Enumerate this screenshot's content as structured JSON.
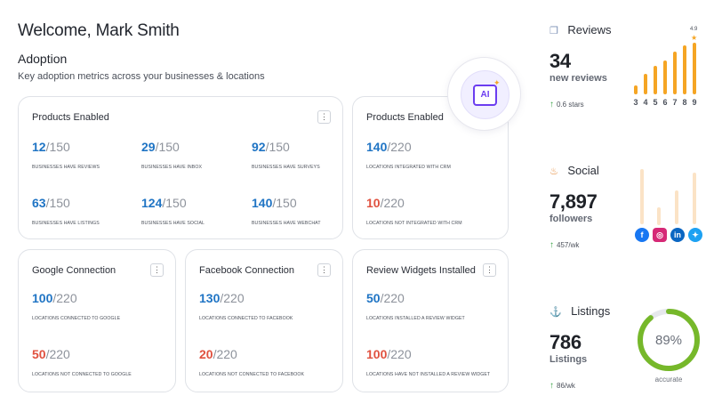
{
  "header": {
    "welcome": "Welcome, Mark Smith",
    "section_title": "Adoption",
    "section_subtitle": "Key adoption metrics across your businesses & locations"
  },
  "ai_badge": {
    "label": "AI",
    "icon": "ai-sparkle-icon"
  },
  "cards": {
    "products_businesses": {
      "title": "Products Enabled",
      "metrics": [
        {
          "num": "12",
          "total": "/150",
          "label": "Businesses have reviews"
        },
        {
          "num": "29",
          "total": "/150",
          "label": "Businesses have inbox"
        },
        {
          "num": "92",
          "total": "/150",
          "label": "Businesses have surveys"
        },
        {
          "num": "63",
          "total": "/150",
          "label": "Businesses have listings"
        },
        {
          "num": "124",
          "total": "/150",
          "label": "Businesses have social"
        },
        {
          "num": "140",
          "total": "/150",
          "label": "Businesses have webchat"
        }
      ]
    },
    "products_locations": {
      "title": "Products Enabled",
      "metrics": [
        {
          "num": "140",
          "total": "/220",
          "label": "Locations integrated with CRM"
        },
        {
          "num": "10",
          "total": "/220",
          "label": "Locations not integrated with CRM"
        }
      ]
    },
    "google": {
      "title": "Google Connection",
      "metrics": [
        {
          "num": "100",
          "total": "/220",
          "label": "Locations connected to Google"
        },
        {
          "num": "50",
          "total": "/220",
          "label": "Locations not connected to Google"
        }
      ]
    },
    "facebook": {
      "title": "Facebook Connection",
      "metrics": [
        {
          "num": "130",
          "total": "/220",
          "label": "Locations connected to Facebook"
        },
        {
          "num": "20",
          "total": "/220",
          "label": "Locations not connected to Facebook"
        }
      ]
    },
    "widgets": {
      "title": "Review Widgets Installed",
      "metrics": [
        {
          "num": "50",
          "total": "/220",
          "label": "Locations installed a review widget"
        },
        {
          "num": "100",
          "total": "/220",
          "label": "Locations have not installed a review widget"
        }
      ]
    },
    "kebab": "⋮"
  },
  "reviews": {
    "title": "Reviews",
    "icon": "reviews-icon",
    "count": "34",
    "count_label": "new reviews",
    "trend": "0.6 stars",
    "rating_top": "4.9",
    "chart": {
      "categories": [
        "3",
        "4",
        "5",
        "6",
        "7",
        "8",
        "9"
      ],
      "values": [
        0.18,
        0.4,
        0.55,
        0.65,
        0.82,
        0.95,
        1.0
      ]
    }
  },
  "social": {
    "title": "Social",
    "icon": "social-icon",
    "count": "7,897",
    "count_label": "followers",
    "trend": "457/wk",
    "networks": [
      "f",
      "ig",
      "in",
      "tw"
    ],
    "bar_values": [
      0.78,
      0.3,
      0.6,
      0.92
    ]
  },
  "listings": {
    "title": "Listings",
    "icon": "listings-icon",
    "count": "786",
    "count_label": "Listings",
    "trend": "86/wk",
    "accuracy_value": 89,
    "accuracy_text": "89%",
    "accuracy_label": "accurate",
    "colors": {
      "ring": "#76b82a",
      "track": "#e6e8ec"
    }
  },
  "colors": {
    "primary": "#1f74c4",
    "alert": "#e0513f",
    "bars": "#f5a524",
    "trend_up": "#3aa346"
  }
}
